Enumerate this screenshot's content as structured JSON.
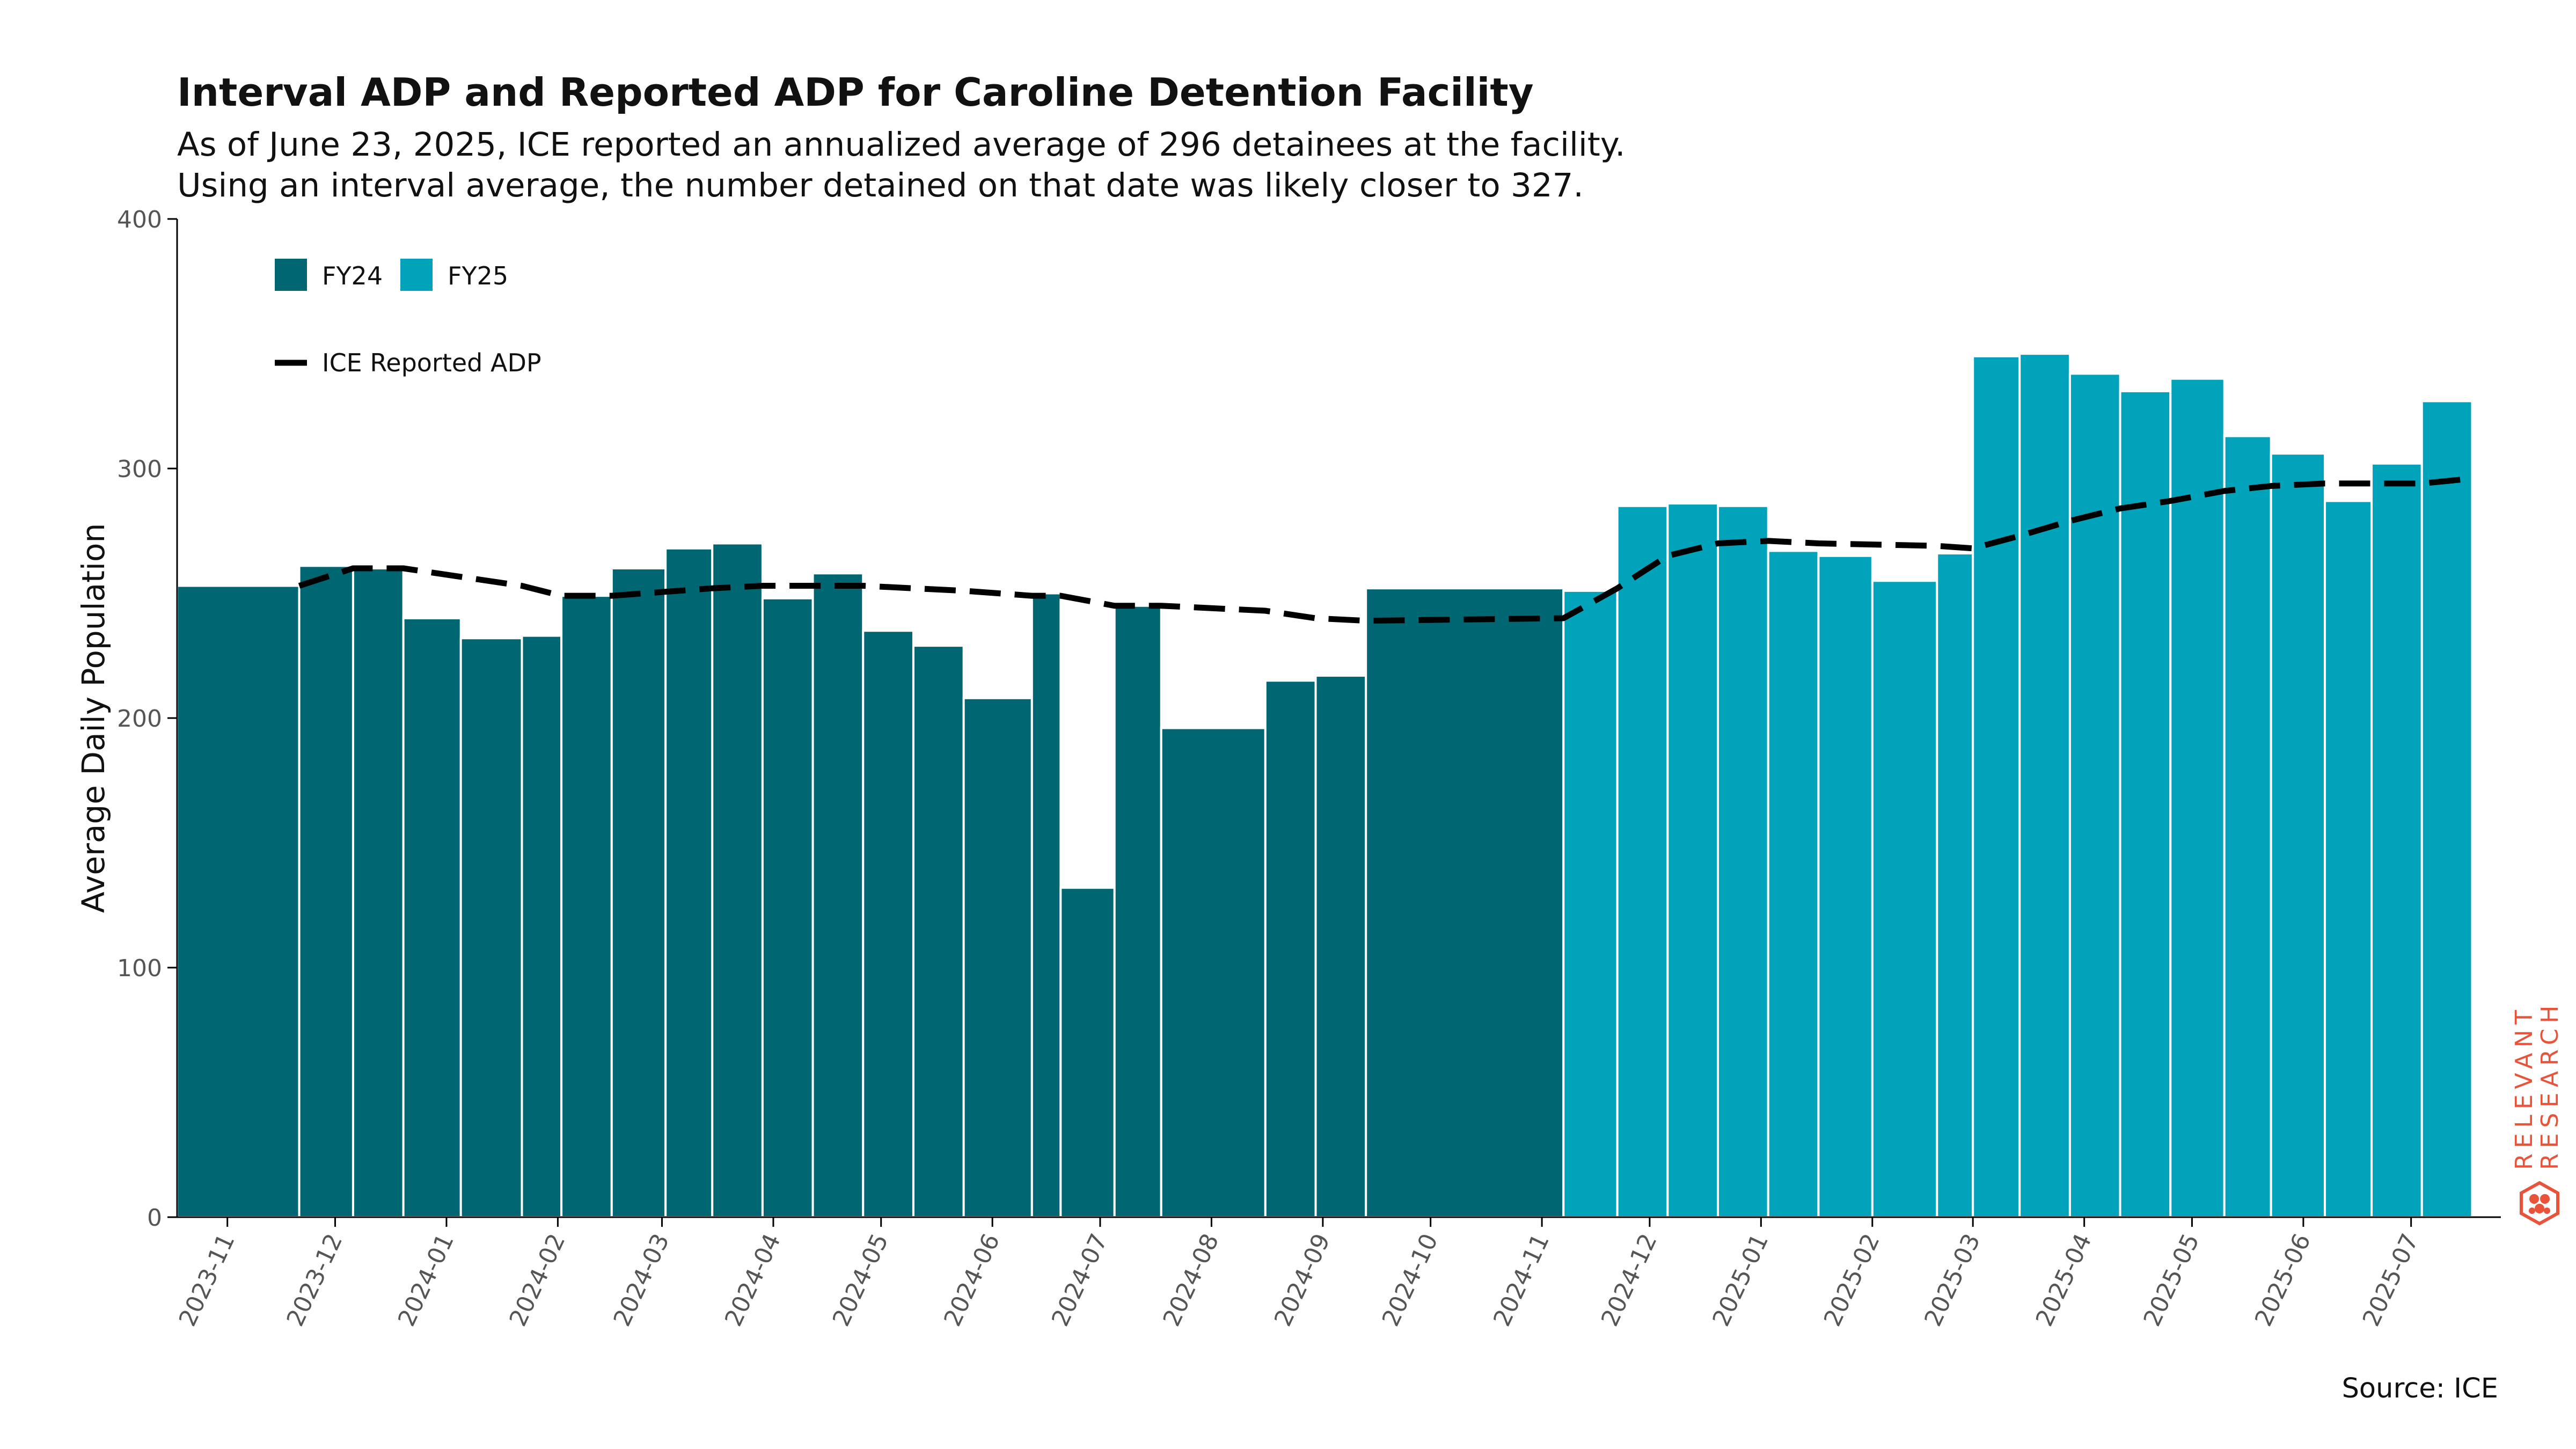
{
  "title": "Interval ADP and Reported ADP for Caroline Detention Facility",
  "subtitle": [
    "As of June 23, 2025, ICE reported an annualized average of 296 detainees at the facility.",
    "Using an interval average, the number detained on that date was likely closer to 327."
  ],
  "source": "Source: ICE",
  "brand": {
    "line1": "RELEVANT",
    "line2": "RESEARCH",
    "icon": "hexagon-logo-icon",
    "color": "#e8533a"
  },
  "colors": {
    "fy24": "#006672",
    "fy25": "#00a3b9",
    "line": "#000000",
    "axis": "#000000",
    "tick_text": "#555555"
  },
  "chart_data": {
    "type": "bar",
    "ylabel": "Average Daily Population",
    "ylim": [
      0,
      400
    ],
    "yticks": [
      0,
      100,
      200,
      300,
      400
    ],
    "xlim": [
      "2023-10-18",
      "2025-07-26"
    ],
    "xticks": [
      "2023-11",
      "2023-12",
      "2024-01",
      "2024-02",
      "2024-03",
      "2024-04",
      "2024-05",
      "2024-06",
      "2024-07",
      "2024-08",
      "2024-09",
      "2024-10",
      "2024-11",
      "2024-12",
      "2025-01",
      "2025-02",
      "2025-03",
      "2025-04",
      "2025-05",
      "2025-06",
      "2025-07"
    ],
    "legend": {
      "placement": "top-left",
      "bars": [
        {
          "name": "FY24",
          "color": "#006672"
        },
        {
          "name": "FY25",
          "color": "#00a3b9"
        }
      ],
      "line": {
        "name": "ICE Reported ADP",
        "style": "dashed"
      }
    },
    "bars": [
      {
        "start": "2023-10-18",
        "end": "2023-11-21",
        "value": 253,
        "fy": "FY24"
      },
      {
        "start": "2023-11-21",
        "end": "2023-12-06",
        "value": 261,
        "fy": "FY24"
      },
      {
        "start": "2023-12-06",
        "end": "2023-12-20",
        "value": 260,
        "fy": "FY24"
      },
      {
        "start": "2023-12-20",
        "end": "2024-01-05",
        "value": 240,
        "fy": "FY24"
      },
      {
        "start": "2024-01-05",
        "end": "2024-01-22",
        "value": 232,
        "fy": "FY24"
      },
      {
        "start": "2024-01-22",
        "end": "2024-02-02",
        "value": 233,
        "fy": "FY24"
      },
      {
        "start": "2024-02-02",
        "end": "2024-02-16",
        "value": 249,
        "fy": "FY24"
      },
      {
        "start": "2024-02-16",
        "end": "2024-03-02",
        "value": 260,
        "fy": "FY24"
      },
      {
        "start": "2024-03-02",
        "end": "2024-03-15",
        "value": 268,
        "fy": "FY24"
      },
      {
        "start": "2024-03-15",
        "end": "2024-03-29",
        "value": 270,
        "fy": "FY24"
      },
      {
        "start": "2024-03-29",
        "end": "2024-04-12",
        "value": 248,
        "fy": "FY24"
      },
      {
        "start": "2024-04-12",
        "end": "2024-04-26",
        "value": 258,
        "fy": "FY24"
      },
      {
        "start": "2024-04-26",
        "end": "2024-05-10",
        "value": 235,
        "fy": "FY24"
      },
      {
        "start": "2024-05-10",
        "end": "2024-05-24",
        "value": 229,
        "fy": "FY24"
      },
      {
        "start": "2024-05-24",
        "end": "2024-06-12",
        "value": 208,
        "fy": "FY24"
      },
      {
        "start": "2024-06-12",
        "end": "2024-06-20",
        "value": 250,
        "fy": "FY24"
      },
      {
        "start": "2024-06-20",
        "end": "2024-07-05",
        "value": 132,
        "fy": "FY24"
      },
      {
        "start": "2024-07-05",
        "end": "2024-07-18",
        "value": 245,
        "fy": "FY24"
      },
      {
        "start": "2024-07-18",
        "end": "2024-08-16",
        "value": 196,
        "fy": "FY24"
      },
      {
        "start": "2024-08-16",
        "end": "2024-08-30",
        "value": 215,
        "fy": "FY24"
      },
      {
        "start": "2024-08-30",
        "end": "2024-09-13",
        "value": 217,
        "fy": "FY24"
      },
      {
        "start": "2024-09-13",
        "end": "2024-11-07",
        "value": 252,
        "fy": "FY24"
      },
      {
        "start": "2024-11-07",
        "end": "2024-11-22",
        "value": 251,
        "fy": "FY25"
      },
      {
        "start": "2024-11-22",
        "end": "2024-12-06",
        "value": 285,
        "fy": "FY25"
      },
      {
        "start": "2024-12-06",
        "end": "2024-12-20",
        "value": 286,
        "fy": "FY25"
      },
      {
        "start": "2024-12-20",
        "end": "2025-01-03",
        "value": 285,
        "fy": "FY25"
      },
      {
        "start": "2025-01-03",
        "end": "2025-01-17",
        "value": 267,
        "fy": "FY25"
      },
      {
        "start": "2025-01-17",
        "end": "2025-02-01",
        "value": 265,
        "fy": "FY25"
      },
      {
        "start": "2025-02-01",
        "end": "2025-02-19",
        "value": 255,
        "fy": "FY25"
      },
      {
        "start": "2025-02-19",
        "end": "2025-03-01",
        "value": 266,
        "fy": "FY25"
      },
      {
        "start": "2025-03-01",
        "end": "2025-03-14",
        "value": 345,
        "fy": "FY25"
      },
      {
        "start": "2025-03-14",
        "end": "2025-03-28",
        "value": 346,
        "fy": "FY25"
      },
      {
        "start": "2025-03-28",
        "end": "2025-04-11",
        "value": 338,
        "fy": "FY25"
      },
      {
        "start": "2025-04-11",
        "end": "2025-04-25",
        "value": 331,
        "fy": "FY25"
      },
      {
        "start": "2025-04-25",
        "end": "2025-05-10",
        "value": 336,
        "fy": "FY25"
      },
      {
        "start": "2025-05-10",
        "end": "2025-05-23",
        "value": 313,
        "fy": "FY25"
      },
      {
        "start": "2025-05-23",
        "end": "2025-06-07",
        "value": 306,
        "fy": "FY25"
      },
      {
        "start": "2025-06-07",
        "end": "2025-06-20",
        "value": 287,
        "fy": "FY25"
      },
      {
        "start": "2025-06-20",
        "end": "2025-07-04",
        "value": 302,
        "fy": "FY25"
      },
      {
        "start": "2025-07-04",
        "end": "2025-07-18",
        "value": 327,
        "fy": "FY25"
      }
    ],
    "line": {
      "name": "ICE Reported ADP",
      "points": [
        {
          "x": "2023-11-21",
          "y": 253
        },
        {
          "x": "2023-12-06",
          "y": 260
        },
        {
          "x": "2023-12-20",
          "y": 260
        },
        {
          "x": "2024-01-22",
          "y": 253
        },
        {
          "x": "2024-02-02",
          "y": 249
        },
        {
          "x": "2024-02-16",
          "y": 249
        },
        {
          "x": "2024-03-15",
          "y": 252
        },
        {
          "x": "2024-03-29",
          "y": 253
        },
        {
          "x": "2024-04-26",
          "y": 253
        },
        {
          "x": "2024-05-24",
          "y": 251
        },
        {
          "x": "2024-06-12",
          "y": 249
        },
        {
          "x": "2024-06-20",
          "y": 249
        },
        {
          "x": "2024-07-05",
          "y": 245
        },
        {
          "x": "2024-07-18",
          "y": 245
        },
        {
          "x": "2024-08-16",
          "y": 243
        },
        {
          "x": "2024-08-30",
          "y": 240
        },
        {
          "x": "2024-09-13",
          "y": 239
        },
        {
          "x": "2024-11-07",
          "y": 240
        },
        {
          "x": "2024-11-22",
          "y": 252
        },
        {
          "x": "2024-12-06",
          "y": 265
        },
        {
          "x": "2024-12-20",
          "y": 270
        },
        {
          "x": "2025-01-03",
          "y": 271
        },
        {
          "x": "2025-01-17",
          "y": 270
        },
        {
          "x": "2025-02-19",
          "y": 269
        },
        {
          "x": "2025-03-01",
          "y": 268
        },
        {
          "x": "2025-03-14",
          "y": 273
        },
        {
          "x": "2025-03-28",
          "y": 279
        },
        {
          "x": "2025-04-11",
          "y": 284
        },
        {
          "x": "2025-04-25",
          "y": 287
        },
        {
          "x": "2025-05-10",
          "y": 291
        },
        {
          "x": "2025-05-23",
          "y": 293
        },
        {
          "x": "2025-06-07",
          "y": 294
        },
        {
          "x": "2025-06-20",
          "y": 294
        },
        {
          "x": "2025-07-04",
          "y": 294
        },
        {
          "x": "2025-07-18",
          "y": 296
        }
      ]
    }
  }
}
